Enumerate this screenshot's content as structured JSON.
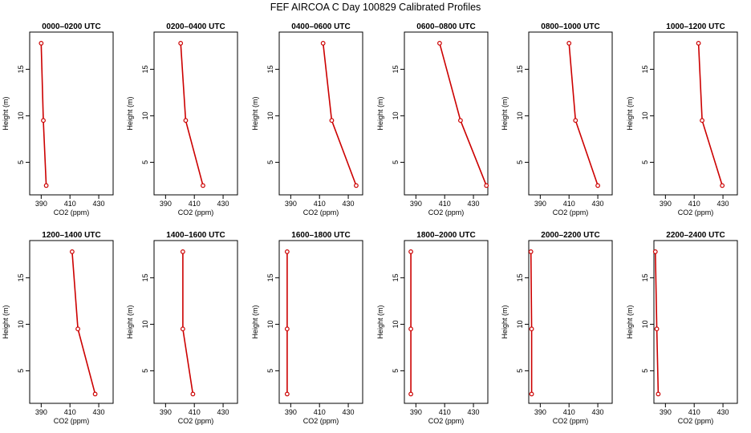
{
  "title": "FEF AIRCOA C  Day 100829  Calibrated Profiles",
  "chart_data": [
    {
      "type": "line",
      "title": "0000–0200 UTC",
      "xlabel": "CO2 (ppm)",
      "ylabel": "Height (m)",
      "xlim": [
        382,
        440
      ],
      "ylim": [
        1.5,
        19
      ],
      "xticks": [
        390,
        410,
        430
      ],
      "yticks": [
        5,
        10,
        15
      ],
      "grid": false,
      "series": [
        {
          "x": [
            393.5,
            391.5,
            390
          ],
          "y": [
            2.5,
            9.5,
            17.8
          ]
        }
      ]
    },
    {
      "type": "line",
      "title": "0200–0400 UTC",
      "xlabel": "CO2 (ppm)",
      "ylabel": "Height (m)",
      "xlim": [
        382,
        440
      ],
      "ylim": [
        1.5,
        19
      ],
      "xticks": [
        390,
        410,
        430
      ],
      "yticks": [
        5,
        10,
        15
      ],
      "grid": false,
      "series": [
        {
          "x": [
            416,
            404,
            400.5
          ],
          "y": [
            2.5,
            9.5,
            17.8
          ]
        }
      ]
    },
    {
      "type": "line",
      "title": "0400–0600 UTC",
      "xlabel": "CO2 (ppm)",
      "ylabel": "Height (m)",
      "xlim": [
        382,
        440
      ],
      "ylim": [
        1.5,
        19
      ],
      "xticks": [
        390,
        410,
        430
      ],
      "yticks": [
        5,
        10,
        15
      ],
      "grid": false,
      "series": [
        {
          "x": [
            435.5,
            418.5,
            412.5
          ],
          "y": [
            2.5,
            9.5,
            17.8
          ]
        }
      ]
    },
    {
      "type": "line",
      "title": "0600–0800 UTC",
      "xlabel": "CO2 (ppm)",
      "ylabel": "Height (m)",
      "xlim": [
        382,
        440
      ],
      "ylim": [
        1.5,
        19
      ],
      "xticks": [
        390,
        410,
        430
      ],
      "yticks": [
        5,
        10,
        15
      ],
      "grid": false,
      "series": [
        {
          "x": [
            439,
            421,
            406.5
          ],
          "y": [
            2.5,
            9.5,
            17.8
          ]
        }
      ]
    },
    {
      "type": "line",
      "title": "0800–1000 UTC",
      "xlabel": "CO2 (ppm)",
      "ylabel": "Height (m)",
      "xlim": [
        382,
        440
      ],
      "ylim": [
        1.5,
        19
      ],
      "xticks": [
        390,
        410,
        430
      ],
      "yticks": [
        5,
        10,
        15
      ],
      "grid": false,
      "series": [
        {
          "x": [
            430,
            414.5,
            410
          ],
          "y": [
            2.5,
            9.5,
            17.8
          ]
        }
      ]
    },
    {
      "type": "line",
      "title": "1000–1200 UTC",
      "xlabel": "CO2 (ppm)",
      "ylabel": "Height (m)",
      "xlim": [
        382,
        440
      ],
      "ylim": [
        1.5,
        19
      ],
      "xticks": [
        390,
        410,
        430
      ],
      "yticks": [
        5,
        10,
        15
      ],
      "grid": false,
      "series": [
        {
          "x": [
            429.5,
            415.5,
            413
          ],
          "y": [
            2.5,
            9.5,
            17.8
          ]
        }
      ]
    },
    {
      "type": "line",
      "title": "1200–1400 UTC",
      "xlabel": "CO2 (ppm)",
      "ylabel": "Height (m)",
      "xlim": [
        382,
        440
      ],
      "ylim": [
        1.5,
        19
      ],
      "xticks": [
        390,
        410,
        430
      ],
      "yticks": [
        5,
        10,
        15
      ],
      "grid": false,
      "series": [
        {
          "x": [
            427.5,
            415.5,
            411.5
          ],
          "y": [
            2.5,
            9.5,
            17.8
          ]
        }
      ]
    },
    {
      "type": "line",
      "title": "1400–1600 UTC",
      "xlabel": "CO2 (ppm)",
      "ylabel": "Height (m)",
      "xlim": [
        382,
        440
      ],
      "ylim": [
        1.5,
        19
      ],
      "xticks": [
        390,
        410,
        430
      ],
      "yticks": [
        5,
        10,
        15
      ],
      "grid": false,
      "series": [
        {
          "x": [
            409,
            402,
            402
          ],
          "y": [
            2.5,
            9.5,
            17.8
          ]
        }
      ]
    },
    {
      "type": "line",
      "title": "1600–1800 UTC",
      "xlabel": "CO2 (ppm)",
      "ylabel": "Height (m)",
      "xlim": [
        382,
        440
      ],
      "ylim": [
        1.5,
        19
      ],
      "xticks": [
        390,
        410,
        430
      ],
      "yticks": [
        5,
        10,
        15
      ],
      "grid": false,
      "series": [
        {
          "x": [
            387.5,
            387.5,
            387.5
          ],
          "y": [
            2.5,
            9.5,
            17.8
          ]
        }
      ]
    },
    {
      "type": "line",
      "title": "1800–2000 UTC",
      "xlabel": "CO2 (ppm)",
      "ylabel": "Height (m)",
      "xlim": [
        382,
        440
      ],
      "ylim": [
        1.5,
        19
      ],
      "xticks": [
        390,
        410,
        430
      ],
      "yticks": [
        5,
        10,
        15
      ],
      "grid": false,
      "series": [
        {
          "x": [
            386.5,
            386.5,
            386.5
          ],
          "y": [
            2.5,
            9.5,
            17.8
          ]
        }
      ]
    },
    {
      "type": "line",
      "title": "2000–2200 UTC",
      "xlabel": "CO2 (ppm)",
      "ylabel": "Height (m)",
      "xlim": [
        382,
        440
      ],
      "ylim": [
        1.5,
        19
      ],
      "xticks": [
        390,
        410,
        430
      ],
      "yticks": [
        5,
        10,
        15
      ],
      "grid": false,
      "series": [
        {
          "x": [
            384,
            384,
            383.5
          ],
          "y": [
            2.5,
            9.5,
            17.8
          ]
        }
      ]
    },
    {
      "type": "line",
      "title": "2200–2400 UTC",
      "xlabel": "CO2 (ppm)",
      "ylabel": "Height (m)",
      "xlim": [
        382,
        440
      ],
      "ylim": [
        1.5,
        19
      ],
      "xticks": [
        390,
        410,
        430
      ],
      "yticks": [
        5,
        10,
        15
      ],
      "grid": false,
      "series": [
        {
          "x": [
            385,
            384,
            383
          ],
          "y": [
            2.5,
            9.5,
            17.8
          ]
        }
      ]
    }
  ],
  "colors": {
    "line": "#cc0000",
    "axis": "#000000",
    "background": "#ffffff"
  }
}
